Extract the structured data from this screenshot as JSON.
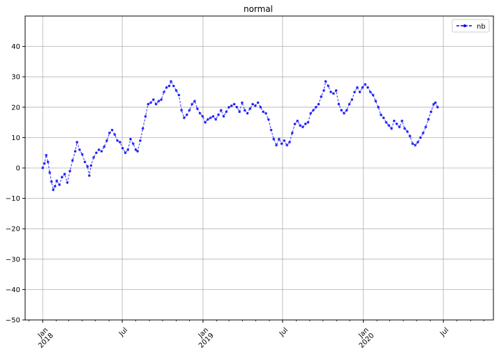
{
  "chart_data": {
    "type": "line",
    "title": "normal",
    "xlabel": "",
    "ylabel": "",
    "x_start": "2017-11-22",
    "x_end": "2020-10-23",
    "ylim": [
      -50,
      50
    ],
    "y_ticks": [
      -50,
      -40,
      -30,
      -20,
      -10,
      0,
      10,
      20,
      30,
      40
    ],
    "x_major_ticks": [
      {
        "date": "2018-01-01",
        "label": [
          "Jan",
          "2018"
        ]
      },
      {
        "date": "2018-07-01",
        "label": [
          "Jul"
        ]
      },
      {
        "date": "2019-01-01",
        "label": [
          "Jan",
          "2019"
        ]
      },
      {
        "date": "2019-07-01",
        "label": [
          "Jul"
        ]
      },
      {
        "date": "2020-01-01",
        "label": [
          "Jan",
          "2020"
        ]
      },
      {
        "date": "2020-07-01",
        "label": [
          "Jul"
        ]
      }
    ],
    "x_minor_ticks": [
      "2017-12-01",
      "2018-02-01",
      "2018-03-01",
      "2018-04-01",
      "2018-05-01",
      "2018-06-01",
      "2018-08-01",
      "2018-09-01",
      "2018-10-01",
      "2018-11-01",
      "2018-12-01",
      "2019-02-01",
      "2019-03-01",
      "2019-04-01",
      "2019-05-01",
      "2019-06-01",
      "2019-08-01",
      "2019-09-01",
      "2019-10-01",
      "2019-11-01",
      "2019-12-01",
      "2020-02-01",
      "2020-03-01",
      "2020-04-01",
      "2020-05-01",
      "2020-06-01",
      "2020-08-01",
      "2020-09-01",
      "2020-10-01"
    ],
    "grid": true,
    "legend_position": "top-right",
    "series": [
      {
        "name": "nb",
        "color": "#0000ff",
        "style": "dashed-with-point-markers",
        "points": [
          [
            "2018-01-01",
            0.0
          ],
          [
            "2018-01-05",
            1.5
          ],
          [
            "2018-01-09",
            4.2
          ],
          [
            "2018-01-13",
            2.0
          ],
          [
            "2018-01-17",
            -1.5
          ],
          [
            "2018-01-21",
            -4.5
          ],
          [
            "2018-01-25",
            -7.2
          ],
          [
            "2018-01-29",
            -6.0
          ],
          [
            "2018-02-02",
            -4.2
          ],
          [
            "2018-02-08",
            -5.5
          ],
          [
            "2018-02-14",
            -3.0
          ],
          [
            "2018-02-20",
            -2.0
          ],
          [
            "2018-02-26",
            -4.8
          ],
          [
            "2018-03-04",
            -1.0
          ],
          [
            "2018-03-10",
            2.5
          ],
          [
            "2018-03-16",
            5.5
          ],
          [
            "2018-03-20",
            8.5
          ],
          [
            "2018-03-26",
            6.0
          ],
          [
            "2018-04-01",
            4.5
          ],
          [
            "2018-04-07",
            2.0
          ],
          [
            "2018-04-13",
            0.5
          ],
          [
            "2018-04-17",
            -2.5
          ],
          [
            "2018-04-21",
            0.8
          ],
          [
            "2018-04-27",
            3.5
          ],
          [
            "2018-05-03",
            5.0
          ],
          [
            "2018-05-09",
            6.0
          ],
          [
            "2018-05-15",
            5.5
          ],
          [
            "2018-05-21",
            7.0
          ],
          [
            "2018-05-27",
            9.0
          ],
          [
            "2018-06-02",
            11.5
          ],
          [
            "2018-06-08",
            12.5
          ],
          [
            "2018-06-14",
            11.0
          ],
          [
            "2018-06-20",
            9.0
          ],
          [
            "2018-06-26",
            8.5
          ],
          [
            "2018-07-02",
            6.5
          ],
          [
            "2018-07-08",
            5.0
          ],
          [
            "2018-07-14",
            6.0
          ],
          [
            "2018-07-20",
            9.5
          ],
          [
            "2018-07-26",
            8.0
          ],
          [
            "2018-08-01",
            6.0
          ],
          [
            "2018-08-05",
            5.5
          ],
          [
            "2018-08-11",
            9.0
          ],
          [
            "2018-08-17",
            13.0
          ],
          [
            "2018-08-23",
            17.0
          ],
          [
            "2018-08-29",
            21.0
          ],
          [
            "2018-09-04",
            21.5
          ],
          [
            "2018-09-10",
            22.5
          ],
          [
            "2018-09-16",
            21.0
          ],
          [
            "2018-09-22",
            22.0
          ],
          [
            "2018-09-28",
            22.5
          ],
          [
            "2018-10-04",
            25.0
          ],
          [
            "2018-10-10",
            26.5
          ],
          [
            "2018-10-16",
            27.0
          ],
          [
            "2018-10-20",
            28.5
          ],
          [
            "2018-10-26",
            27.0
          ],
          [
            "2018-11-01",
            25.5
          ],
          [
            "2018-11-07",
            24.0
          ],
          [
            "2018-11-13",
            19.0
          ],
          [
            "2018-11-19",
            16.5
          ],
          [
            "2018-11-25",
            17.5
          ],
          [
            "2018-12-01",
            19.0
          ],
          [
            "2018-12-07",
            21.0
          ],
          [
            "2018-12-13",
            22.0
          ],
          [
            "2018-12-19",
            19.5
          ],
          [
            "2018-12-25",
            18.0
          ],
          [
            "2018-12-31",
            17.0
          ],
          [
            "2019-01-06",
            15.0
          ],
          [
            "2019-01-12",
            16.0
          ],
          [
            "2019-01-18",
            16.5
          ],
          [
            "2019-01-24",
            17.0
          ],
          [
            "2019-01-30",
            16.0
          ],
          [
            "2019-02-05",
            17.5
          ],
          [
            "2019-02-11",
            19.0
          ],
          [
            "2019-02-17",
            17.0
          ],
          [
            "2019-02-23",
            18.5
          ],
          [
            "2019-03-01",
            20.0
          ],
          [
            "2019-03-07",
            20.5
          ],
          [
            "2019-03-13",
            21.0
          ],
          [
            "2019-03-19",
            20.0
          ],
          [
            "2019-03-25",
            18.5
          ],
          [
            "2019-03-31",
            21.5
          ],
          [
            "2019-04-06",
            19.0
          ],
          [
            "2019-04-12",
            18.0
          ],
          [
            "2019-04-18",
            19.5
          ],
          [
            "2019-04-24",
            21.0
          ],
          [
            "2019-04-30",
            20.5
          ],
          [
            "2019-05-06",
            21.5
          ],
          [
            "2019-05-12",
            20.0
          ],
          [
            "2019-05-18",
            18.5
          ],
          [
            "2019-05-24",
            18.0
          ],
          [
            "2019-05-30",
            16.0
          ],
          [
            "2019-06-05",
            12.5
          ],
          [
            "2019-06-11",
            9.5
          ],
          [
            "2019-06-17",
            7.5
          ],
          [
            "2019-06-23",
            9.5
          ],
          [
            "2019-06-29",
            8.0
          ],
          [
            "2019-07-05",
            9.0
          ],
          [
            "2019-07-11",
            7.5
          ],
          [
            "2019-07-17",
            8.5
          ],
          [
            "2019-07-23",
            11.5
          ],
          [
            "2019-07-29",
            14.5
          ],
          [
            "2019-08-04",
            15.5
          ],
          [
            "2019-08-10",
            14.0
          ],
          [
            "2019-08-16",
            13.5
          ],
          [
            "2019-08-22",
            14.5
          ],
          [
            "2019-08-28",
            15.0
          ],
          [
            "2019-09-03",
            18.0
          ],
          [
            "2019-09-09",
            19.0
          ],
          [
            "2019-09-15",
            20.0
          ],
          [
            "2019-09-21",
            21.0
          ],
          [
            "2019-09-27",
            23.5
          ],
          [
            "2019-10-03",
            25.5
          ],
          [
            "2019-10-07",
            28.5
          ],
          [
            "2019-10-13",
            27.0
          ],
          [
            "2019-10-19",
            25.0
          ],
          [
            "2019-10-25",
            24.5
          ],
          [
            "2019-10-31",
            25.5
          ],
          [
            "2019-11-06",
            21.0
          ],
          [
            "2019-11-12",
            19.0
          ],
          [
            "2019-11-18",
            18.0
          ],
          [
            "2019-11-24",
            19.0
          ],
          [
            "2019-11-30",
            21.0
          ],
          [
            "2019-12-06",
            22.5
          ],
          [
            "2019-12-12",
            25.0
          ],
          [
            "2019-12-18",
            26.5
          ],
          [
            "2019-12-24",
            25.0
          ],
          [
            "2019-12-30",
            26.5
          ],
          [
            "2020-01-05",
            27.5
          ],
          [
            "2020-01-11",
            26.5
          ],
          [
            "2020-01-17",
            25.0
          ],
          [
            "2020-01-23",
            24.0
          ],
          [
            "2020-01-29",
            22.0
          ],
          [
            "2020-02-04",
            20.0
          ],
          [
            "2020-02-10",
            17.5
          ],
          [
            "2020-02-16",
            16.5
          ],
          [
            "2020-02-22",
            15.0
          ],
          [
            "2020-02-28",
            14.0
          ],
          [
            "2020-03-05",
            13.0
          ],
          [
            "2020-03-11",
            15.5
          ],
          [
            "2020-03-17",
            14.5
          ],
          [
            "2020-03-23",
            13.5
          ],
          [
            "2020-03-29",
            15.5
          ],
          [
            "2020-04-04",
            13.0
          ],
          [
            "2020-04-10",
            12.0
          ],
          [
            "2020-04-16",
            10.5
          ],
          [
            "2020-04-22",
            8.0
          ],
          [
            "2020-04-28",
            7.5
          ],
          [
            "2020-05-04",
            8.5
          ],
          [
            "2020-05-10",
            10.0
          ],
          [
            "2020-05-16",
            11.5
          ],
          [
            "2020-05-22",
            13.5
          ],
          [
            "2020-05-28",
            16.0
          ],
          [
            "2020-06-03",
            18.5
          ],
          [
            "2020-06-09",
            21.0
          ],
          [
            "2020-06-13",
            21.5
          ],
          [
            "2020-06-18",
            20.0
          ]
        ]
      }
    ]
  }
}
